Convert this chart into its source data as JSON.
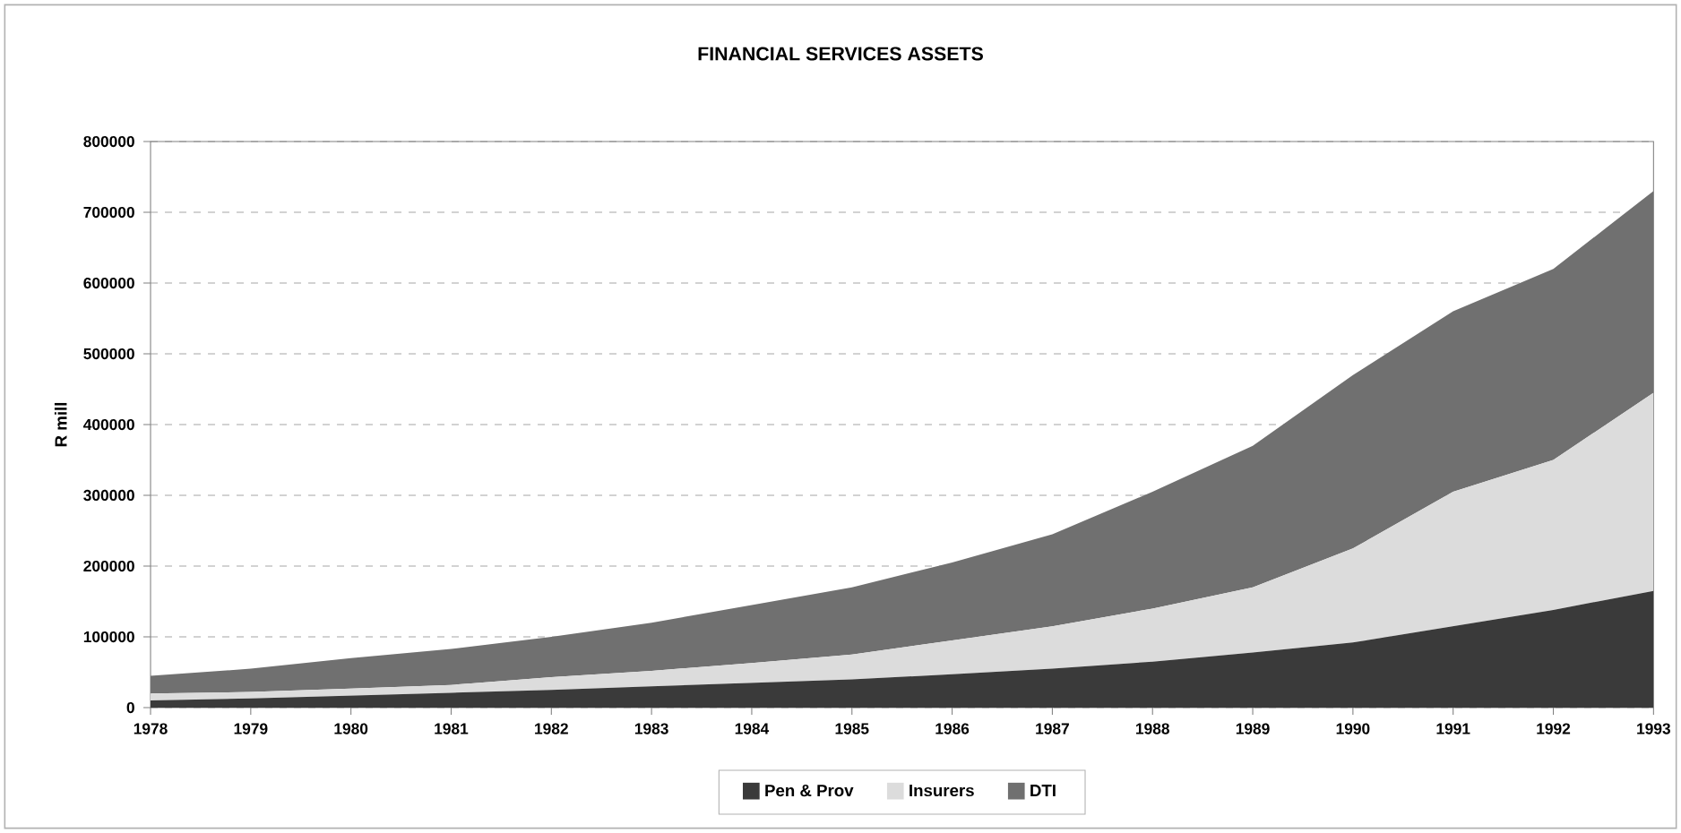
{
  "chart_data": {
    "type": "area",
    "title": "FINANCIAL SERVICES ASSETS",
    "ylabel": "R mill",
    "stacked": true,
    "x": [
      1978,
      1979,
      1980,
      1981,
      1982,
      1983,
      1984,
      1985,
      1986,
      1987,
      1988,
      1989,
      1990,
      1991,
      1992,
      1993
    ],
    "series": [
      {
        "name": "Pen & Prov",
        "color": "#3a3a3a",
        "values": [
          10000,
          13000,
          17000,
          21000,
          25000,
          30000,
          35000,
          40000,
          47000,
          55000,
          65000,
          78000,
          92000,
          115000,
          138000,
          165000
        ]
      },
      {
        "name": "Insurers",
        "color": "#dcdcdc",
        "values": [
          10000,
          9000,
          10000,
          11000,
          18000,
          22000,
          28000,
          35000,
          48000,
          60000,
          75000,
          92000,
          133000,
          190000,
          212000,
          280000
        ]
      },
      {
        "name": "DTI",
        "color": "#707070",
        "values": [
          25000,
          33000,
          43000,
          51000,
          57000,
          68000,
          82000,
          95000,
          110000,
          130000,
          165000,
          200000,
          245000,
          255000,
          270000,
          285000
        ]
      }
    ],
    "xlim": [
      1978,
      1993
    ],
    "xticks": [
      1978,
      1979,
      1980,
      1981,
      1982,
      1983,
      1984,
      1985,
      1986,
      1987,
      1988,
      1989,
      1990,
      1991,
      1992,
      1993
    ],
    "ylim": [
      0,
      800000
    ],
    "yticks": [
      0,
      100000,
      200000,
      300000,
      400000,
      500000,
      600000,
      700000,
      800000
    ],
    "grid": "y",
    "line_style": "dashed",
    "legend": "bottom"
  }
}
